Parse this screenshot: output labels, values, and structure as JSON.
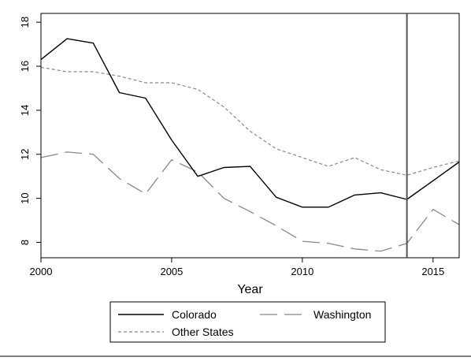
{
  "chart_data": {
    "type": "line",
    "xlabel": "Year",
    "ylabel": "",
    "xlim": [
      2000,
      2016
    ],
    "ylim": [
      7.3,
      18.4
    ],
    "x_ticks": [
      2000,
      2005,
      2010,
      2015
    ],
    "x_tick_labels": [
      "2000",
      "2005",
      "2010",
      "2015"
    ],
    "y_ticks": [
      8,
      10,
      12,
      14,
      16,
      18
    ],
    "y_tick_labels": [
      "8",
      "10",
      "12",
      "14",
      "16",
      "18"
    ],
    "y_tick_label_rotation": "vertical",
    "grid": false,
    "reference_line": {
      "orientation": "vertical",
      "x": 2014
    },
    "legend_position": "bottom",
    "x": [
      2000,
      2001,
      2002,
      2003,
      2004,
      2005,
      2006,
      2007,
      2008,
      2009,
      2010,
      2011,
      2012,
      2013,
      2014,
      2015,
      2016
    ],
    "series": [
      {
        "name": "Colorado",
        "style": "solid",
        "color": "#000000",
        "values": [
          16.3,
          17.25,
          17.05,
          14.8,
          14.55,
          12.65,
          11.0,
          11.4,
          11.45,
          10.05,
          9.6,
          9.6,
          10.15,
          10.25,
          9.95,
          10.8,
          11.65
        ]
      },
      {
        "name": "Washington",
        "style": "long-dash",
        "color": "#888888",
        "values": [
          11.85,
          12.1,
          12.0,
          10.9,
          10.2,
          11.75,
          11.2,
          10.0,
          9.4,
          8.75,
          8.05,
          7.95,
          7.7,
          7.6,
          7.95,
          9.5,
          8.8
        ]
      },
      {
        "name": "Other States",
        "style": "short-dash",
        "color": "#888888",
        "values": [
          15.95,
          15.75,
          15.75,
          15.55,
          15.25,
          15.25,
          14.95,
          14.15,
          13.05,
          12.25,
          11.85,
          11.45,
          11.85,
          11.3,
          11.05,
          11.4,
          11.7
        ]
      }
    ]
  }
}
